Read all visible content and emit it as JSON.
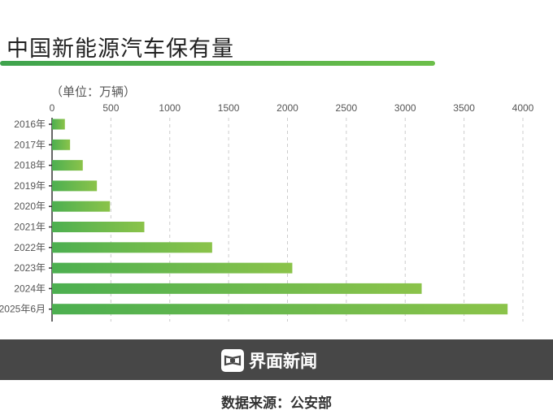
{
  "chart_data": {
    "type": "bar",
    "orientation": "horizontal",
    "title": "中国新能源汽车保有量",
    "unit_label": "（单位：万辆）",
    "categories": [
      "2016年",
      "2017年",
      "2018年",
      "2019年",
      "2020年",
      "2021年",
      "2022年",
      "2023年",
      "2024年",
      "2025年6月"
    ],
    "values": [
      109,
      153,
      261,
      381,
      492,
      784,
      1360,
      2041,
      3140,
      3870
    ],
    "xlim": [
      0,
      4000
    ],
    "xticks": [
      0,
      500,
      1000,
      1500,
      2000,
      2500,
      3000,
      3500,
      4000
    ],
    "grid": "vertical dashed",
    "colors": {
      "bar_start": "#4caf50",
      "bar_end": "#8bc34a"
    }
  },
  "footer": {
    "brand": "界面新闻",
    "source": "数据来源：公安部"
  }
}
